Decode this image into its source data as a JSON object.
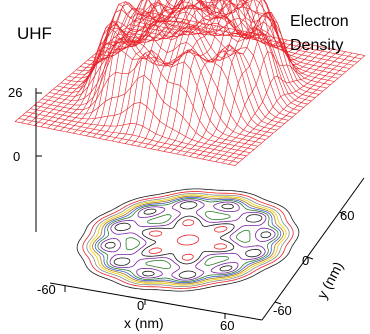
{
  "chart_data": {
    "type": "surface",
    "title": "UHF",
    "zlabel": "Electron Density",
    "zlabel_lines": [
      "Electron",
      "Density"
    ],
    "xlabel": "x (nm)",
    "ylabel": "y (nm)",
    "z_ticks": [
      "26",
      "0"
    ],
    "zlim": [
      0,
      26
    ],
    "x_ticks": [
      "-60",
      "0",
      "60"
    ],
    "y_ticks": [
      "60",
      "0",
      "-60"
    ],
    "xlim": [
      -70,
      70
    ],
    "ylim": [
      -70,
      70
    ],
    "surface_color": "#e8242b",
    "contour_colors": [
      "#e8242b",
      "#1a1a1a",
      "#7a1fa2",
      "#2a7a2a",
      "#3457c8",
      "#b07a10",
      "#e8d000",
      "#8a8a8a"
    ],
    "contour_projection": true,
    "density_peaks_nm": [
      [
        0,
        0
      ],
      [
        -22,
        0
      ],
      [
        22,
        0
      ],
      [
        -11,
        19
      ],
      [
        11,
        19
      ],
      [
        -11,
        -19
      ],
      [
        11,
        -19
      ],
      [
        -44,
        0
      ],
      [
        44,
        0
      ],
      [
        -22,
        38
      ],
      [
        22,
        38
      ],
      [
        -22,
        -38
      ],
      [
        22,
        -38
      ],
      [
        -38,
        22
      ],
      [
        38,
        22
      ],
      [
        -38,
        -22
      ],
      [
        38,
        -22
      ],
      [
        0,
        44
      ],
      [
        0,
        -44
      ]
    ]
  }
}
